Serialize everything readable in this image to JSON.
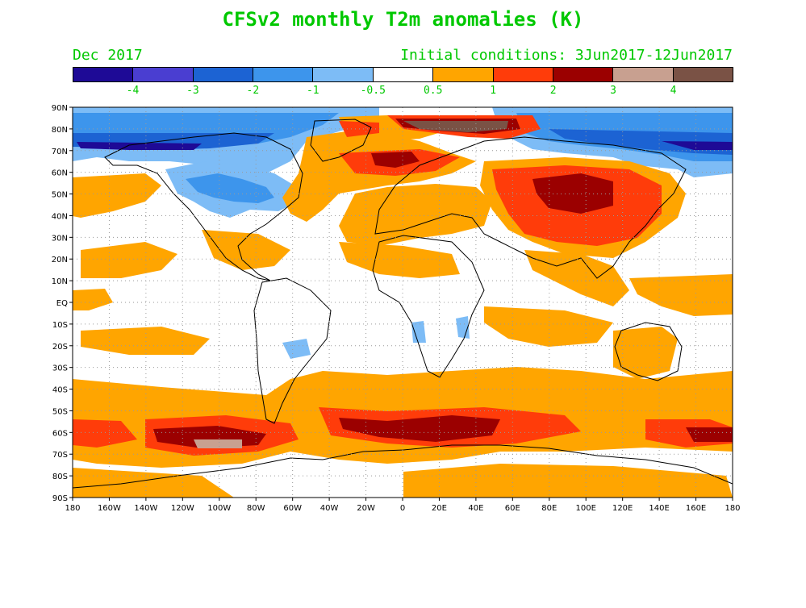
{
  "header": {
    "title": "CFSv2 monthly T2m anomalies (K)",
    "forecast_month": "Dec 2017",
    "initial_conditions": "Initial conditions: 3Jun2017-12Jun2017"
  },
  "legend": {
    "colors": [
      "#1e0a96",
      "#4a3ed1",
      "#1c63d3",
      "#3d95ec",
      "#7dbcf6",
      "#ffffff",
      "#ffa500",
      "#ff3c0a",
      "#9b0000",
      "#c8a090",
      "#7a5245"
    ],
    "labels": [
      "-4",
      "-3",
      "-2",
      "-1",
      "-0.5",
      "0.5",
      "1",
      "2",
      "3",
      "4"
    ]
  },
  "map": {
    "lat_labels": [
      "90N",
      "80N",
      "70N",
      "60N",
      "50N",
      "40N",
      "30N",
      "20N",
      "10N",
      "EQ",
      "10S",
      "20S",
      "30S",
      "40S",
      "50S",
      "60S",
      "70S",
      "80S",
      "90S"
    ],
    "lon_labels": [
      "180",
      "160W",
      "140W",
      "120W",
      "100W",
      "80W",
      "60W",
      "40W",
      "20W",
      "0",
      "20E",
      "40E",
      "60E",
      "80E",
      "100E",
      "120E",
      "140E",
      "160E",
      "180"
    ]
  }
}
